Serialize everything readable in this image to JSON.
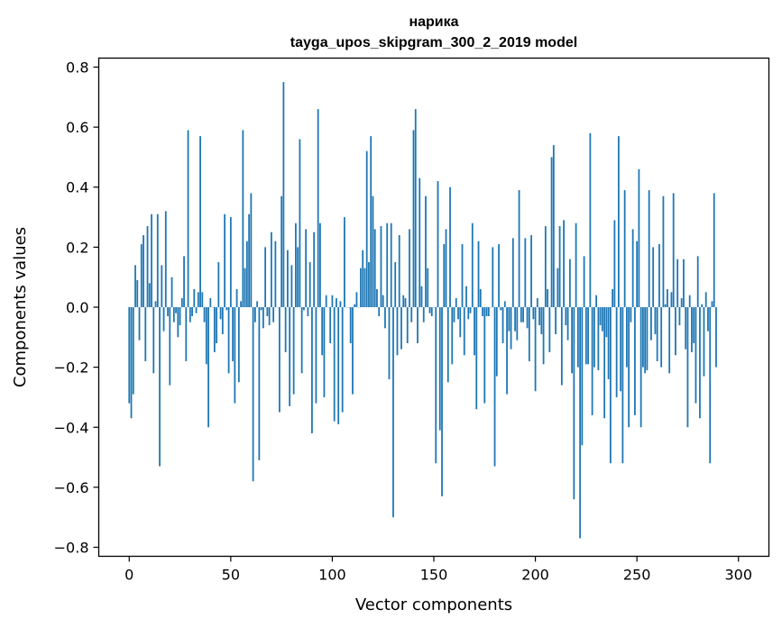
{
  "chart_data": {
    "type": "bar",
    "title": "нарика",
    "subtitle": "tayga_upos_skipgram_300_2_2019 model",
    "xlabel": "Vector components",
    "ylabel": "Components values",
    "xlim": [
      -15,
      315
    ],
    "ylim": [
      -0.83,
      0.83
    ],
    "xticks": [
      0,
      50,
      100,
      150,
      200,
      250,
      300
    ],
    "xtick_labels": [
      "0",
      "50",
      "100",
      "150",
      "200",
      "250",
      "300"
    ],
    "yticks": [
      -0.8,
      -0.6,
      -0.4,
      -0.2,
      0.0,
      0.2,
      0.4,
      0.6,
      0.8
    ],
    "ytick_labels": [
      "−0.8",
      "−0.6",
      "−0.4",
      "−0.2",
      "0.0",
      "0.2",
      "0.4",
      "0.6",
      "0.8"
    ],
    "bar_color": "#1f77b4",
    "series": [
      {
        "name": "нарика",
        "values": [
          -0.32,
          -0.37,
          -0.29,
          0.14,
          0.09,
          -0.11,
          0.21,
          0.24,
          -0.18,
          0.27,
          0.08,
          0.31,
          -0.22,
          0.02,
          0.31,
          -0.53,
          0.14,
          -0.08,
          0.32,
          -0.03,
          -0.26,
          0.1,
          -0.05,
          -0.02,
          -0.1,
          -0.06,
          0.03,
          0.17,
          -0.18,
          0.59,
          -0.05,
          -0.03,
          0.06,
          -0.02,
          0.05,
          0.57,
          0.05,
          -0.05,
          -0.19,
          -0.4,
          0.03,
          0.0,
          -0.15,
          -0.12,
          0.15,
          -0.04,
          -0.09,
          0.31,
          -0.01,
          -0.22,
          0.3,
          -0.18,
          -0.32,
          0.06,
          -0.25,
          0.02,
          0.59,
          0.13,
          0.22,
          0.31,
          0.38,
          -0.58,
          -0.05,
          0.02,
          -0.51,
          -0.01,
          -0.07,
          0.2,
          -0.03,
          -0.06,
          0.25,
          -0.05,
          0.22,
          0.0,
          -0.35,
          0.37,
          0.75,
          -0.15,
          0.19,
          -0.33,
          0.14,
          -0.29,
          0.28,
          0.2,
          0.56,
          -0.22,
          -0.01,
          0.26,
          -0.03,
          0.15,
          -0.42,
          0.25,
          -0.32,
          0.66,
          0.28,
          -0.16,
          -0.3,
          0.04,
          0.0,
          -0.12,
          0.04,
          -0.38,
          0.03,
          -0.39,
          0.02,
          -0.35,
          0.3,
          0.0,
          0.0,
          -0.12,
          -0.29,
          0.01,
          0.05,
          0.0,
          0.13,
          0.19,
          0.13,
          0.52,
          0.15,
          0.57,
          0.37,
          0.26,
          0.06,
          -0.03,
          0.27,
          0.04,
          -0.07,
          0.28,
          -0.24,
          0.28,
          -0.7,
          0.15,
          -0.16,
          0.24,
          -0.14,
          0.04,
          0.03,
          -0.12,
          0.26,
          -0.05,
          0.59,
          0.66,
          -0.12,
          0.43,
          0.07,
          -0.05,
          0.37,
          0.13,
          -0.02,
          -0.03,
          0.0,
          -0.52,
          0.42,
          -0.41,
          -0.63,
          0.21,
          0.26,
          -0.25,
          0.4,
          -0.19,
          -0.05,
          0.03,
          -0.04,
          -0.1,
          0.21,
          -0.16,
          0.07,
          -0.04,
          -0.02,
          0.28,
          -0.16,
          -0.34,
          0.22,
          0.06,
          -0.03,
          -0.32,
          -0.03,
          -0.03,
          0.0,
          0.2,
          -0.53,
          -0.23,
          0.21,
          -0.01,
          -0.12,
          0.02,
          -0.29,
          -0.08,
          -0.14,
          0.23,
          -0.08,
          -0.11,
          0.39,
          -0.05,
          -0.05,
          0.23,
          -0.07,
          -0.18,
          0.24,
          -0.04,
          -0.28,
          0.03,
          -0.06,
          -0.09,
          -0.19,
          0.27,
          0.06,
          -0.15,
          0.5,
          0.54,
          -0.09,
          0.13,
          0.27,
          -0.26,
          0.29,
          -0.06,
          -0.11,
          0.16,
          -0.22,
          -0.64,
          0.28,
          -0.2,
          -0.77,
          -0.46,
          0.17,
          -0.19,
          -0.19,
          0.58,
          -0.36,
          -0.2,
          0.04,
          -0.21,
          -0.06,
          -0.08,
          -0.37,
          -0.1,
          -0.24,
          -0.52,
          0.06,
          0.29,
          -0.3,
          0.57,
          -0.28,
          -0.52,
          0.39,
          -0.2,
          -0.4,
          -0.05,
          0.26,
          -0.36,
          0.22,
          0.46,
          -0.4,
          -0.2,
          -0.22,
          -0.21,
          0.39,
          -0.11,
          0.2,
          -0.09,
          -0.18,
          0.21,
          -0.2,
          0.37,
          0.01,
          0.06,
          -0.22,
          0.05,
          0.38,
          -0.16,
          0.16,
          -0.06,
          0.03,
          0.16,
          -0.14,
          -0.4,
          0.04,
          -0.15,
          -0.12,
          -0.32,
          0.17,
          -0.37,
          0.01,
          -0.23,
          0.05,
          -0.08,
          -0.52,
          0.02,
          0.38,
          -0.2
        ]
      }
    ]
  }
}
